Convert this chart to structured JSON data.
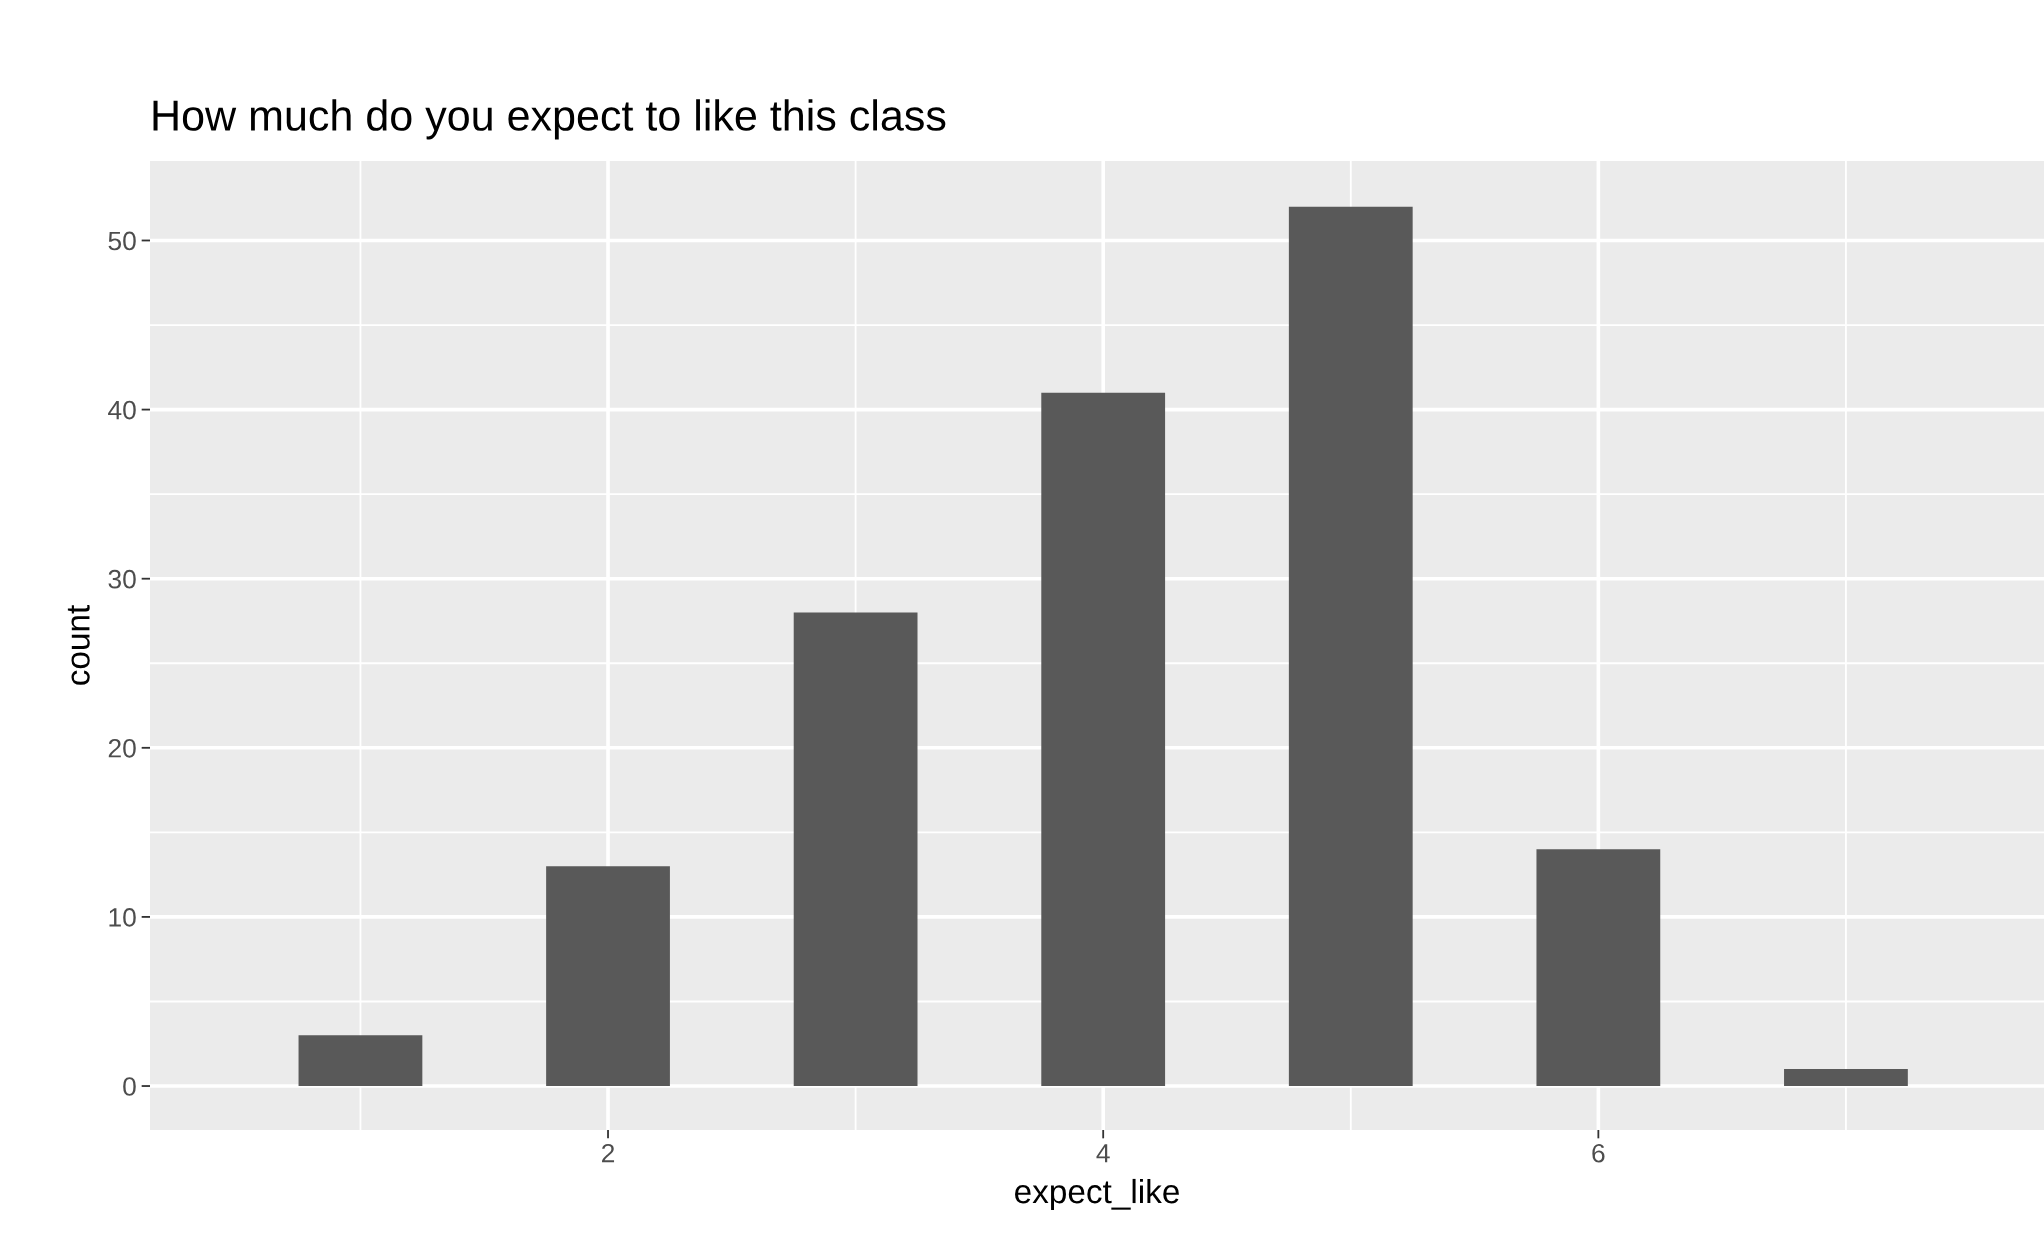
{
  "chart_data": {
    "type": "bar",
    "title": "How much do you expect to like this class",
    "xlabel": "expect_like",
    "ylabel": "count",
    "x": [
      1,
      2,
      3,
      4,
      5,
      6,
      7
    ],
    "values": [
      3,
      13,
      28,
      41,
      52,
      14,
      1
    ],
    "color": "#595959",
    "xlim": [
      0.15,
      7.8
    ],
    "xticks": [
      2,
      4,
      6
    ],
    "ylim": [
      -2.6,
      54.7
    ],
    "yticks": [
      0,
      10,
      20,
      30,
      40,
      50
    ],
    "grid": true
  }
}
